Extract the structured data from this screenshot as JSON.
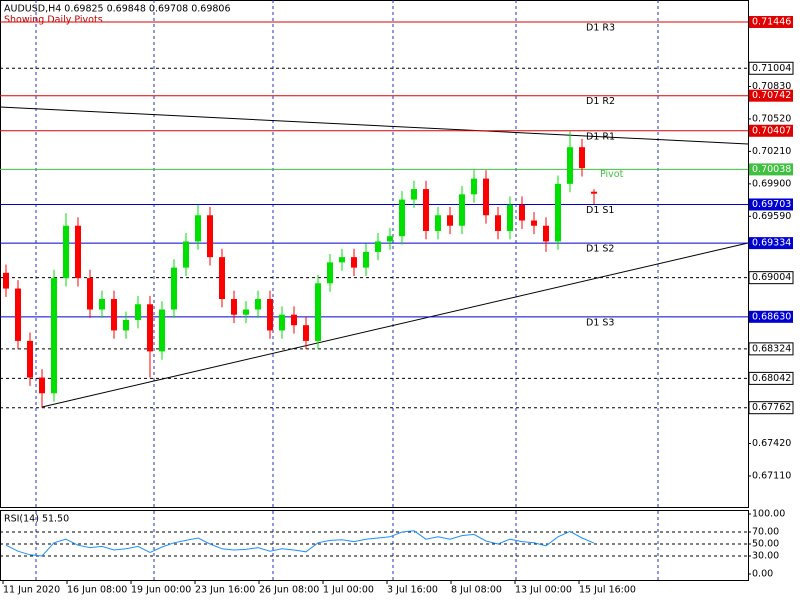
{
  "chart_data": {
    "type": "candlestick",
    "title": "AUDUSD,H4  0.69825 0.69848 0.69708 0.69806",
    "subtitle": "Showing Daily Pivots",
    "bull_color": "#00e000",
    "bear_color": "#ff0000",
    "open": [
      0.6905,
      0.689,
      0.684,
      0.6805,
      0.679,
      0.69,
      0.695,
      0.69,
      0.687,
      0.688,
      0.685,
      0.686,
      0.6875,
      0.683,
      0.687,
      0.691,
      0.6935,
      0.696,
      0.692,
      0.688,
      0.6865,
      0.687,
      0.688,
      0.685,
      0.6865,
      0.6855,
      0.684,
      0.6895,
      0.6915,
      0.692,
      0.691,
      0.6925,
      0.6935,
      0.694,
      0.6975,
      0.6985,
      0.6945,
      0.696,
      0.695,
      0.698,
      0.6995,
      0.696,
      0.6945,
      0.697,
      0.6955,
      0.695,
      0.6935,
      0.699,
      0.7025,
      0.69825
    ],
    "high": [
      0.6913,
      0.6898,
      0.6848,
      0.6813,
      0.6908,
      0.6962,
      0.6958,
      0.6908,
      0.6888,
      0.6888,
      0.6868,
      0.6883,
      0.6883,
      0.6878,
      0.6918,
      0.6943,
      0.697,
      0.6968,
      0.6928,
      0.6888,
      0.6878,
      0.6888,
      0.6888,
      0.6873,
      0.6873,
      0.6863,
      0.6903,
      0.6923,
      0.6928,
      0.6928,
      0.6933,
      0.6943,
      0.6948,
      0.6983,
      0.6993,
      0.6993,
      0.6968,
      0.6968,
      0.6988,
      0.7003,
      0.7003,
      0.6968,
      0.6978,
      0.6978,
      0.6963,
      0.6958,
      0.6998,
      0.704,
      0.7033,
      0.69848
    ],
    "low": [
      0.6882,
      0.6832,
      0.6797,
      0.6776,
      0.6782,
      0.6892,
      0.6892,
      0.6862,
      0.6862,
      0.6842,
      0.6842,
      0.6852,
      0.6805,
      0.6822,
      0.6862,
      0.6902,
      0.6927,
      0.6912,
      0.6872,
      0.6857,
      0.6857,
      0.6862,
      0.6842,
      0.6842,
      0.6847,
      0.6832,
      0.6832,
      0.6887,
      0.6907,
      0.6902,
      0.6902,
      0.6917,
      0.6927,
      0.6932,
      0.6967,
      0.6937,
      0.6937,
      0.6942,
      0.6942,
      0.6972,
      0.6952,
      0.6937,
      0.6937,
      0.6947,
      0.6942,
      0.6925,
      0.6927,
      0.6982,
      0.6997,
      0.69708
    ],
    "close": [
      0.689,
      0.684,
      0.6805,
      0.679,
      0.69,
      0.695,
      0.69,
      0.687,
      0.688,
      0.685,
      0.686,
      0.6875,
      0.683,
      0.687,
      0.691,
      0.6935,
      0.696,
      0.692,
      0.688,
      0.6865,
      0.687,
      0.688,
      0.685,
      0.6865,
      0.6855,
      0.684,
      0.6895,
      0.6915,
      0.692,
      0.691,
      0.6925,
      0.6935,
      0.694,
      0.6975,
      0.6985,
      0.6945,
      0.696,
      0.695,
      0.698,
      0.6995,
      0.696,
      0.6945,
      0.697,
      0.6955,
      0.695,
      0.6935,
      0.699,
      0.7025,
      0.7005,
      0.69806
    ],
    "ylim": [
      0.66804,
      0.71656
    ],
    "yticks": [
      {
        "value": 0.7083,
        "label": "0.70830"
      },
      {
        "value": 0.7052,
        "label": "0.70520"
      },
      {
        "value": 0.7021,
        "label": "0.70210"
      },
      {
        "value": 0.699,
        "label": "0.69900"
      },
      {
        "value": 0.6959,
        "label": "0.69590"
      },
      {
        "value": 0.6742,
        "label": "0.67420"
      },
      {
        "value": 0.6711,
        "label": "0.67110"
      }
    ],
    "pivots": [
      {
        "name": "D1 R3",
        "value": 0.71446,
        "label": "0.71446",
        "color": "#e00000"
      },
      {
        "name": "D1 R2",
        "value": 0.70742,
        "label": "0.70742",
        "color": "#e00000"
      },
      {
        "name": "D1 R1",
        "value": 0.70407,
        "label": "0.70407",
        "color": "#e00000"
      },
      {
        "name": "Pivot",
        "value": 0.70038,
        "label": "0.70038",
        "color": "#40c040"
      },
      {
        "name": "D1 S1",
        "value": 0.69703,
        "label": "0.69703",
        "color": "#0000d0"
      },
      {
        "name": "D1 S2",
        "value": 0.69334,
        "label": "0.69334",
        "color": "#0000d0"
      },
      {
        "name": "D1 S3",
        "value": 0.6863,
        "label": "0.68630",
        "color": "#0000d0"
      }
    ],
    "levels": [
      0.71004,
      0.69004,
      0.68324,
      0.68042,
      0.67762
    ],
    "xlabels": [
      "11 Jun 2020",
      "16 Jun 08:00",
      "19 Jun 00:00",
      "23 Jun 16:00",
      "26 Jun 08:00",
      "1 Jul 00:00",
      "3 Jul 16:00",
      "8 Jul 08:00",
      "13 Jul 00:00",
      "15 Jul 16:00"
    ],
    "rsi": {
      "title": "RSI(14) 51.50",
      "color": "#1e90ff",
      "values": [
        48,
        38,
        32,
        30,
        52,
        58,
        48,
        44,
        46,
        40,
        42,
        46,
        36,
        45,
        52,
        56,
        60,
        50,
        42,
        40,
        41,
        44,
        38,
        42,
        40,
        37,
        52,
        56,
        57,
        54,
        58,
        60,
        62,
        70,
        72,
        58,
        62,
        58,
        64,
        66,
        55,
        50,
        58,
        54,
        52,
        47,
        62,
        71,
        60,
        51.5
      ],
      "ylim": [
        0,
        100
      ],
      "yticks": [
        {
          "value": 100,
          "label": "100.00"
        },
        {
          "value": 70,
          "label": "70.00"
        },
        {
          "value": 50,
          "label": "50.00"
        },
        {
          "value": 30,
          "label": "30.00"
        },
        {
          "value": 0,
          "label": "0.00"
        }
      ],
      "levels": [
        70,
        50,
        30
      ]
    }
  }
}
